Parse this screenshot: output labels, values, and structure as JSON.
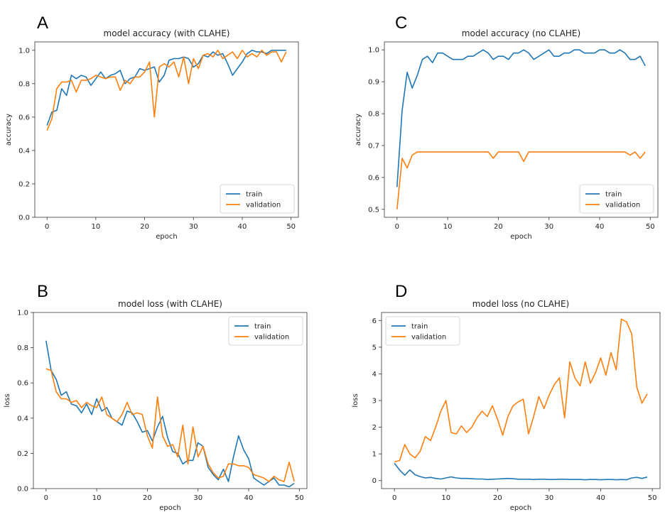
{
  "chart_data": [
    {
      "panel": "A",
      "type": "line",
      "title": "model accuracy (with CLAHE)",
      "xlabel": "epoch",
      "ylabel": "accuracy",
      "xlim": [
        -2.5,
        51.5
      ],
      "ylim": [
        0.0,
        1.05
      ],
      "xticks": [
        0,
        10,
        20,
        30,
        40,
        50
      ],
      "yticks": [
        0.0,
        0.2,
        0.4,
        0.6,
        0.8,
        1.0
      ],
      "ytick_decimals": 1,
      "legend_position": "lower-right",
      "series": [
        {
          "name": "train",
          "color": "#1f77b4",
          "values": [
            0.55,
            0.63,
            0.64,
            0.77,
            0.73,
            0.85,
            0.83,
            0.85,
            0.84,
            0.79,
            0.83,
            0.87,
            0.83,
            0.85,
            0.86,
            0.88,
            0.8,
            0.83,
            0.84,
            0.89,
            0.88,
            0.89,
            0.9,
            0.81,
            0.85,
            0.94,
            0.95,
            0.95,
            0.96,
            0.95,
            0.9,
            0.92,
            0.97,
            0.96,
            0.99,
            0.97,
            0.98,
            0.92,
            0.85,
            0.89,
            0.93,
            0.98,
            1.0,
            0.99,
            0.99,
            0.98,
            1.0,
            1.0,
            1.0,
            1.0
          ]
        },
        {
          "name": "validation",
          "color": "#ff7f0e",
          "values": [
            0.52,
            0.59,
            0.77,
            0.81,
            0.81,
            0.82,
            0.75,
            0.82,
            0.82,
            0.83,
            0.85,
            0.84,
            0.83,
            0.84,
            0.84,
            0.76,
            0.82,
            0.8,
            0.84,
            0.84,
            0.87,
            0.93,
            0.6,
            0.9,
            0.92,
            0.9,
            0.93,
            0.84,
            0.96,
            0.8,
            0.95,
            0.89,
            0.97,
            0.98,
            0.96,
            1.0,
            0.95,
            0.97,
            0.99,
            0.95,
            1.0,
            0.96,
            0.98,
            0.96,
            1.0,
            0.97,
            0.99,
            0.99,
            0.93,
            0.99
          ]
        }
      ]
    },
    {
      "panel": "C",
      "type": "line",
      "title": "model accuracy (no CLAHE)",
      "xlabel": "epoch",
      "ylabel": "accuracy",
      "xlim": [
        -2.5,
        51.5
      ],
      "ylim": [
        0.475,
        1.025
      ],
      "xticks": [
        0,
        10,
        20,
        30,
        40,
        50
      ],
      "yticks": [
        0.5,
        0.6,
        0.7,
        0.8,
        0.9,
        1.0
      ],
      "ytick_decimals": 1,
      "legend_position": "lower-right",
      "series": [
        {
          "name": "train",
          "color": "#1f77b4",
          "values": [
            0.57,
            0.81,
            0.93,
            0.88,
            0.92,
            0.97,
            0.98,
            0.96,
            0.99,
            0.99,
            0.98,
            0.97,
            0.97,
            0.97,
            0.98,
            0.98,
            0.99,
            1.0,
            0.99,
            0.97,
            0.98,
            0.98,
            0.97,
            0.99,
            0.99,
            1.0,
            0.99,
            0.97,
            0.98,
            0.99,
            1.0,
            0.98,
            0.98,
            0.99,
            0.99,
            1.0,
            1.0,
            0.99,
            0.99,
            0.99,
            1.0,
            1.0,
            0.99,
            0.99,
            1.0,
            0.99,
            0.97,
            0.97,
            0.98,
            0.95
          ]
        },
        {
          "name": "validation",
          "color": "#ff7f0e",
          "values": [
            0.5,
            0.66,
            0.63,
            0.67,
            0.68,
            0.68,
            0.68,
            0.68,
            0.68,
            0.68,
            0.68,
            0.68,
            0.68,
            0.68,
            0.68,
            0.68,
            0.68,
            0.68,
            0.68,
            0.66,
            0.68,
            0.68,
            0.68,
            0.68,
            0.68,
            0.65,
            0.68,
            0.68,
            0.68,
            0.68,
            0.68,
            0.68,
            0.68,
            0.68,
            0.68,
            0.68,
            0.68,
            0.68,
            0.68,
            0.68,
            0.68,
            0.68,
            0.68,
            0.68,
            0.68,
            0.68,
            0.67,
            0.68,
            0.66,
            0.68
          ]
        }
      ]
    },
    {
      "panel": "B",
      "type": "line",
      "title": "model loss (with CLAHE)",
      "xlabel": "epoch",
      "ylabel": "loss",
      "xlim": [
        -2.5,
        51.5
      ],
      "ylim": [
        0.0,
        1.0
      ],
      "xticks": [
        0,
        10,
        20,
        30,
        40,
        50
      ],
      "yticks": [
        0.0,
        0.2,
        0.4,
        0.6,
        0.8,
        1.0
      ],
      "ytick_decimals": 1,
      "legend_position": "upper-right",
      "series": [
        {
          "name": "train",
          "color": "#1f77b4",
          "values": [
            0.84,
            0.67,
            0.62,
            0.53,
            0.55,
            0.48,
            0.47,
            0.43,
            0.48,
            0.42,
            0.51,
            0.44,
            0.46,
            0.4,
            0.38,
            0.36,
            0.44,
            0.43,
            0.38,
            0.32,
            0.33,
            0.27,
            0.35,
            0.41,
            0.29,
            0.21,
            0.2,
            0.14,
            0.16,
            0.16,
            0.26,
            0.24,
            0.12,
            0.08,
            0.05,
            0.11,
            0.04,
            0.18,
            0.3,
            0.22,
            0.17,
            0.06,
            0.04,
            0.02,
            0.04,
            0.06,
            0.02,
            0.02,
            0.01,
            0.03
          ]
        },
        {
          "name": "validation",
          "color": "#ff7f0e",
          "values": [
            0.68,
            0.67,
            0.55,
            0.51,
            0.51,
            0.49,
            0.5,
            0.46,
            0.49,
            0.47,
            0.46,
            0.52,
            0.42,
            0.4,
            0.38,
            0.42,
            0.49,
            0.42,
            0.43,
            0.42,
            0.3,
            0.23,
            0.52,
            0.3,
            0.24,
            0.25,
            0.18,
            0.36,
            0.14,
            0.35,
            0.18,
            0.24,
            0.14,
            0.09,
            0.06,
            0.07,
            0.14,
            0.14,
            0.13,
            0.13,
            0.12,
            0.08,
            0.07,
            0.06,
            0.04,
            0.07,
            0.05,
            0.04,
            0.15,
            0.04
          ]
        }
      ]
    },
    {
      "panel": "D",
      "type": "line",
      "title": "model loss (no CLAHE)",
      "xlabel": "epoch",
      "ylabel": "loss",
      "xlim": [
        -2.5,
        51.5
      ],
      "ylim": [
        -0.3,
        6.3
      ],
      "xticks": [
        0,
        10,
        20,
        30,
        40,
        50
      ],
      "yticks": [
        0,
        1,
        2,
        3,
        4,
        5,
        6
      ],
      "ytick_decimals": 0,
      "legend_position": "upper-left",
      "series": [
        {
          "name": "train",
          "color": "#1f77b4",
          "values": [
            0.65,
            0.4,
            0.2,
            0.4,
            0.22,
            0.15,
            0.1,
            0.12,
            0.08,
            0.06,
            0.1,
            0.14,
            0.1,
            0.08,
            0.08,
            0.07,
            0.06,
            0.06,
            0.04,
            0.05,
            0.06,
            0.07,
            0.08,
            0.07,
            0.05,
            0.05,
            0.05,
            0.04,
            0.05,
            0.05,
            0.04,
            0.04,
            0.05,
            0.05,
            0.04,
            0.04,
            0.04,
            0.03,
            0.04,
            0.04,
            0.03,
            0.04,
            0.04,
            0.03,
            0.04,
            0.03,
            0.1,
            0.12,
            0.08,
            0.13
          ]
        },
        {
          "name": "validation",
          "color": "#ff7f0e",
          "values": [
            0.7,
            0.75,
            1.35,
            1.0,
            0.85,
            1.1,
            1.65,
            1.5,
            2.0,
            2.6,
            3.0,
            1.8,
            1.75,
            2.05,
            1.8,
            2.0,
            2.35,
            2.6,
            2.4,
            2.8,
            2.3,
            1.7,
            2.4,
            2.8,
            2.95,
            3.05,
            1.75,
            2.4,
            3.15,
            2.7,
            3.2,
            3.6,
            3.85,
            2.35,
            4.45,
            3.85,
            3.55,
            4.45,
            3.65,
            4.05,
            4.6,
            3.95,
            4.8,
            4.15,
            6.05,
            5.95,
            5.5,
            3.5,
            2.9,
            3.25
          ]
        }
      ]
    }
  ]
}
